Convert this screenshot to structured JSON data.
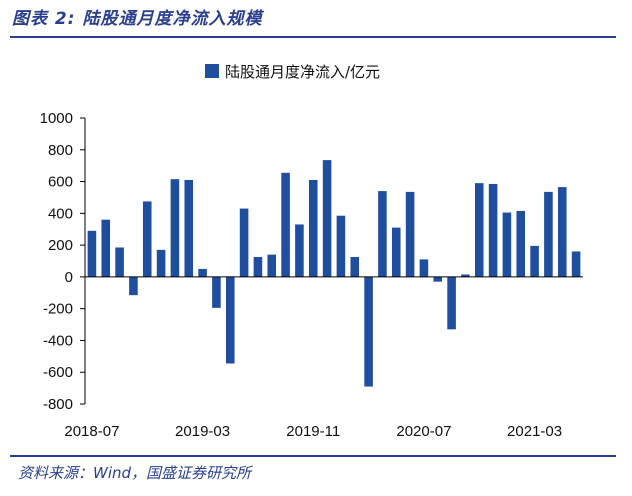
{
  "figure_title": "图表 2:  陆股通月度净流入规模",
  "source": "资料来源：Wind，国盛证券研究所",
  "colors": {
    "bar": "#1f4e9e",
    "title": "#2a3f8f",
    "axis": "#000000"
  },
  "chart_data": {
    "type": "bar",
    "title": "",
    "xlabel": "",
    "ylabel": "",
    "legend_position": "top-center",
    "ylim": [
      -800,
      1000
    ],
    "yticks": [
      1000,
      800,
      600,
      400,
      200,
      0,
      -200,
      -400,
      -600,
      -800
    ],
    "categories": [
      "2018-07",
      "2018-08",
      "2018-09",
      "2018-10",
      "2018-11",
      "2018-12",
      "2019-01",
      "2019-02",
      "2019-03",
      "2019-04",
      "2019-05",
      "2019-06",
      "2019-07",
      "2019-08",
      "2019-09",
      "2019-10",
      "2019-11",
      "2019-12",
      "2020-01",
      "2020-02",
      "2020-03",
      "2020-04",
      "2020-05",
      "2020-06",
      "2020-07",
      "2020-08",
      "2020-09",
      "2020-10",
      "2020-11",
      "2020-12",
      "2021-01",
      "2021-02",
      "2021-03",
      "2021-04",
      "2021-05",
      "2021-06"
    ],
    "xtick_labels": [
      "2018-07",
      "2019-03",
      "2019-11",
      "2020-07",
      "2021-03"
    ],
    "series": [
      {
        "name": "陆股通月度净流入/亿元",
        "values": [
          290,
          360,
          185,
          -115,
          475,
          170,
          615,
          610,
          50,
          -195,
          -545,
          430,
          125,
          140,
          655,
          330,
          610,
          735,
          385,
          125,
          -690,
          540,
          310,
          535,
          110,
          -30,
          -330,
          15,
          590,
          585,
          405,
          415,
          195,
          535,
          565,
          160
        ]
      }
    ]
  }
}
